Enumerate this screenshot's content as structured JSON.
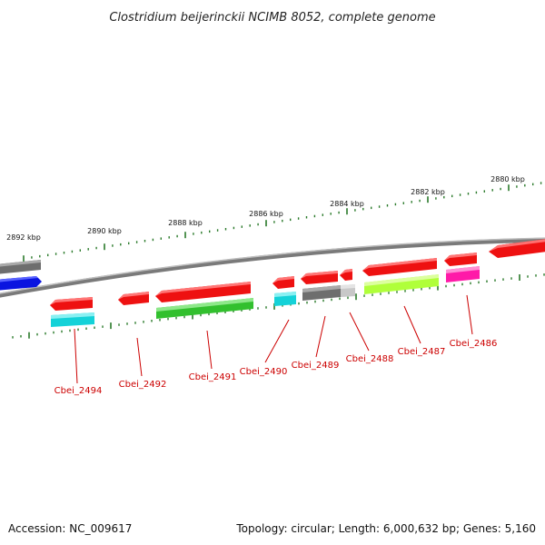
{
  "title": "Clostridium beijerinckii NCIMB 8052, complete genome",
  "footer": {
    "accession": "Accession: NC_009617",
    "topology": "Topology: circular; Length: 6,000,632 bp; Genes: 5,160"
  },
  "scale_labels": [
    "2892 kbp",
    "2890 kbp",
    "2888 kbp",
    "2886 kbp",
    "2884 kbp",
    "2882 kbp",
    "2880 kbp"
  ],
  "gene_labels": [
    "Cbei_2494",
    "Cbei_2492",
    "Cbei_2491",
    "Cbei_2490",
    "Cbei_2489",
    "Cbei_2488",
    "Cbei_2487",
    "Cbei_2486"
  ],
  "colors": {
    "cds": "#ee1111",
    "backbone": "#888888",
    "label": "#cc0000",
    "tick": "#2a7a2a",
    "blue": "#0a14e0",
    "grey": "#6e6e6e",
    "cyan": "#14d2d8",
    "green": "#32c02e",
    "light_grey": "#c8c8c8",
    "lime": "#b0ff3a",
    "magenta": "#ff1aa8"
  }
}
